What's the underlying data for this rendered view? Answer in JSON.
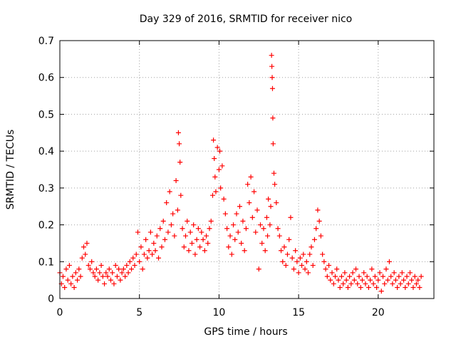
{
  "chart_data": {
    "type": "scatter",
    "title": "Day 329 of 2016, SRMTID for receiver nico",
    "xlabel": "GPS time / hours",
    "ylabel": "SRMTID / TECUs",
    "xlim": [
      0,
      23.5
    ],
    "ylim": [
      0,
      0.7
    ],
    "xticks": [
      0,
      5,
      10,
      15,
      20
    ],
    "xtick_labels": [
      "0",
      "5",
      "10",
      "15",
      "20"
    ],
    "yticks": [
      0,
      0.1,
      0.2,
      0.3,
      0.4,
      0.5,
      0.6,
      0.7
    ],
    "ytick_labels": [
      "0",
      "0.1",
      "0.2",
      "0.3",
      "0.4",
      "0.5",
      "0.6",
      "0.7"
    ],
    "grid": true,
    "marker": "+",
    "color": "#ff0000",
    "series": [
      {
        "name": "SRMTID",
        "points": [
          [
            0.0,
            0.07
          ],
          [
            0.1,
            0.04
          ],
          [
            0.2,
            0.06
          ],
          [
            0.3,
            0.03
          ],
          [
            0.4,
            0.08
          ],
          [
            0.5,
            0.05
          ],
          [
            0.6,
            0.09
          ],
          [
            0.7,
            0.04
          ],
          [
            0.8,
            0.06
          ],
          [
            0.9,
            0.03
          ],
          [
            1.0,
            0.07
          ],
          [
            1.1,
            0.05
          ],
          [
            1.2,
            0.08
          ],
          [
            1.3,
            0.06
          ],
          [
            1.4,
            0.11
          ],
          [
            1.5,
            0.14
          ],
          [
            1.6,
            0.12
          ],
          [
            1.7,
            0.15
          ],
          [
            1.8,
            0.09
          ],
          [
            1.9,
            0.08
          ],
          [
            2.0,
            0.1
          ],
          [
            2.1,
            0.07
          ],
          [
            2.2,
            0.06
          ],
          [
            2.3,
            0.08
          ],
          [
            2.4,
            0.05
          ],
          [
            2.5,
            0.07
          ],
          [
            2.6,
            0.09
          ],
          [
            2.7,
            0.06
          ],
          [
            2.8,
            0.04
          ],
          [
            2.9,
            0.07
          ],
          [
            3.0,
            0.06
          ],
          [
            3.1,
            0.08
          ],
          [
            3.2,
            0.05
          ],
          [
            3.3,
            0.07
          ],
          [
            3.4,
            0.04
          ],
          [
            3.5,
            0.09
          ],
          [
            3.6,
            0.06
          ],
          [
            3.7,
            0.08
          ],
          [
            3.8,
            0.05
          ],
          [
            3.9,
            0.07
          ],
          [
            4.0,
            0.08
          ],
          [
            4.1,
            0.06
          ],
          [
            4.2,
            0.09
          ],
          [
            4.3,
            0.07
          ],
          [
            4.4,
            0.1
          ],
          [
            4.5,
            0.08
          ],
          [
            4.6,
            0.11
          ],
          [
            4.7,
            0.09
          ],
          [
            4.8,
            0.12
          ],
          [
            4.9,
            0.18
          ],
          [
            5.0,
            0.1
          ],
          [
            5.1,
            0.14
          ],
          [
            5.2,
            0.08
          ],
          [
            5.3,
            0.12
          ],
          [
            5.4,
            0.16
          ],
          [
            5.5,
            0.11
          ],
          [
            5.6,
            0.13
          ],
          [
            5.7,
            0.18
          ],
          [
            5.8,
            0.12
          ],
          [
            5.9,
            0.15
          ],
          [
            6.0,
            0.13
          ],
          [
            6.1,
            0.17
          ],
          [
            6.2,
            0.11
          ],
          [
            6.3,
            0.19
          ],
          [
            6.4,
            0.14
          ],
          [
            6.5,
            0.21
          ],
          [
            6.6,
            0.16
          ],
          [
            6.7,
            0.26
          ],
          [
            6.8,
            0.18
          ],
          [
            6.9,
            0.29
          ],
          [
            7.0,
            0.2
          ],
          [
            7.1,
            0.23
          ],
          [
            7.2,
            0.17
          ],
          [
            7.3,
            0.32
          ],
          [
            7.4,
            0.24
          ],
          [
            7.45,
            0.45
          ],
          [
            7.5,
            0.42
          ],
          [
            7.55,
            0.37
          ],
          [
            7.6,
            0.28
          ],
          [
            7.7,
            0.19
          ],
          [
            7.8,
            0.14
          ],
          [
            7.9,
            0.17
          ],
          [
            8.0,
            0.21
          ],
          [
            8.1,
            0.13
          ],
          [
            8.2,
            0.18
          ],
          [
            8.3,
            0.15
          ],
          [
            8.4,
            0.2
          ],
          [
            8.5,
            0.12
          ],
          [
            8.6,
            0.16
          ],
          [
            8.7,
            0.19
          ],
          [
            8.8,
            0.14
          ],
          [
            8.9,
            0.18
          ],
          [
            9.0,
            0.16
          ],
          [
            9.1,
            0.13
          ],
          [
            9.2,
            0.17
          ],
          [
            9.3,
            0.15
          ],
          [
            9.4,
            0.19
          ],
          [
            9.5,
            0.21
          ],
          [
            9.6,
            0.28
          ],
          [
            9.65,
            0.43
          ],
          [
            9.7,
            0.38
          ],
          [
            9.75,
            0.33
          ],
          [
            9.8,
            0.29
          ],
          [
            9.9,
            0.41
          ],
          [
            10.0,
            0.35
          ],
          [
            10.05,
            0.4
          ],
          [
            10.1,
            0.3
          ],
          [
            10.2,
            0.36
          ],
          [
            10.3,
            0.27
          ],
          [
            10.4,
            0.23
          ],
          [
            10.5,
            0.19
          ],
          [
            10.6,
            0.14
          ],
          [
            10.7,
            0.17
          ],
          [
            10.8,
            0.12
          ],
          [
            10.9,
            0.2
          ],
          [
            11.0,
            0.16
          ],
          [
            11.1,
            0.23
          ],
          [
            11.2,
            0.18
          ],
          [
            11.3,
            0.25
          ],
          [
            11.4,
            0.15
          ],
          [
            11.5,
            0.21
          ],
          [
            11.6,
            0.13
          ],
          [
            11.7,
            0.19
          ],
          [
            11.8,
            0.31
          ],
          [
            11.9,
            0.26
          ],
          [
            12.0,
            0.33
          ],
          [
            12.1,
            0.22
          ],
          [
            12.2,
            0.29
          ],
          [
            12.3,
            0.18
          ],
          [
            12.4,
            0.24
          ],
          [
            12.5,
            0.08
          ],
          [
            12.6,
            0.2
          ],
          [
            12.7,
            0.15
          ],
          [
            12.8,
            0.19
          ],
          [
            12.9,
            0.13
          ],
          [
            13.0,
            0.22
          ],
          [
            13.05,
            0.17
          ],
          [
            13.1,
            0.27
          ],
          [
            13.2,
            0.2
          ],
          [
            13.25,
            0.25
          ],
          [
            13.3,
            0.66
          ],
          [
            13.32,
            0.63
          ],
          [
            13.34,
            0.6
          ],
          [
            13.36,
            0.57
          ],
          [
            13.38,
            0.49
          ],
          [
            13.4,
            0.42
          ],
          [
            13.45,
            0.34
          ],
          [
            13.5,
            0.31
          ],
          [
            13.6,
            0.26
          ],
          [
            13.7,
            0.19
          ],
          [
            13.8,
            0.17
          ],
          [
            13.9,
            0.13
          ],
          [
            14.0,
            0.1
          ],
          [
            14.1,
            0.14
          ],
          [
            14.2,
            0.09
          ],
          [
            14.3,
            0.12
          ],
          [
            14.4,
            0.16
          ],
          [
            14.5,
            0.22
          ],
          [
            14.6,
            0.11
          ],
          [
            14.7,
            0.08
          ],
          [
            14.8,
            0.13
          ],
          [
            14.9,
            0.1
          ],
          [
            15.0,
            0.07
          ],
          [
            15.1,
            0.11
          ],
          [
            15.2,
            0.09
          ],
          [
            15.3,
            0.12
          ],
          [
            15.4,
            0.08
          ],
          [
            15.5,
            0.1
          ],
          [
            15.6,
            0.07
          ],
          [
            15.7,
            0.12
          ],
          [
            15.8,
            0.14
          ],
          [
            15.9,
            0.09
          ],
          [
            16.0,
            0.16
          ],
          [
            16.1,
            0.19
          ],
          [
            16.2,
            0.24
          ],
          [
            16.3,
            0.21
          ],
          [
            16.4,
            0.17
          ],
          [
            16.5,
            0.12
          ],
          [
            16.6,
            0.1
          ],
          [
            16.7,
            0.08
          ],
          [
            16.8,
            0.06
          ],
          [
            16.9,
            0.09
          ],
          [
            17.0,
            0.05
          ],
          [
            17.1,
            0.07
          ],
          [
            17.2,
            0.04
          ],
          [
            17.3,
            0.06
          ],
          [
            17.4,
            0.08
          ],
          [
            17.5,
            0.05
          ],
          [
            17.6,
            0.03
          ],
          [
            17.7,
            0.06
          ],
          [
            17.8,
            0.04
          ],
          [
            17.9,
            0.07
          ],
          [
            18.0,
            0.05
          ],
          [
            18.1,
            0.03
          ],
          [
            18.2,
            0.06
          ],
          [
            18.3,
            0.04
          ],
          [
            18.4,
            0.07
          ],
          [
            18.5,
            0.05
          ],
          [
            18.6,
            0.08
          ],
          [
            18.7,
            0.04
          ],
          [
            18.8,
            0.06
          ],
          [
            18.9,
            0.03
          ],
          [
            19.0,
            0.05
          ],
          [
            19.1,
            0.07
          ],
          [
            19.2,
            0.04
          ],
          [
            19.3,
            0.06
          ],
          [
            19.4,
            0.03
          ],
          [
            19.5,
            0.05
          ],
          [
            19.6,
            0.08
          ],
          [
            19.7,
            0.04
          ],
          [
            19.8,
            0.06
          ],
          [
            19.9,
            0.03
          ],
          [
            20.0,
            0.05
          ],
          [
            20.1,
            0.07
          ],
          [
            20.2,
            0.02
          ],
          [
            20.3,
            0.06
          ],
          [
            20.4,
            0.04
          ],
          [
            20.5,
            0.08
          ],
          [
            20.6,
            0.05
          ],
          [
            20.7,
            0.1
          ],
          [
            20.8,
            0.06
          ],
          [
            20.9,
            0.04
          ],
          [
            21.0,
            0.07
          ],
          [
            21.1,
            0.05
          ],
          [
            21.2,
            0.03
          ],
          [
            21.3,
            0.06
          ],
          [
            21.4,
            0.04
          ],
          [
            21.5,
            0.07
          ],
          [
            21.6,
            0.05
          ],
          [
            21.7,
            0.03
          ],
          [
            21.8,
            0.06
          ],
          [
            21.9,
            0.04
          ],
          [
            22.0,
            0.07
          ],
          [
            22.1,
            0.05
          ],
          [
            22.2,
            0.03
          ],
          [
            22.3,
            0.06
          ],
          [
            22.4,
            0.04
          ],
          [
            22.5,
            0.05
          ],
          [
            22.6,
            0.03
          ],
          [
            22.7,
            0.06
          ]
        ]
      }
    ]
  }
}
